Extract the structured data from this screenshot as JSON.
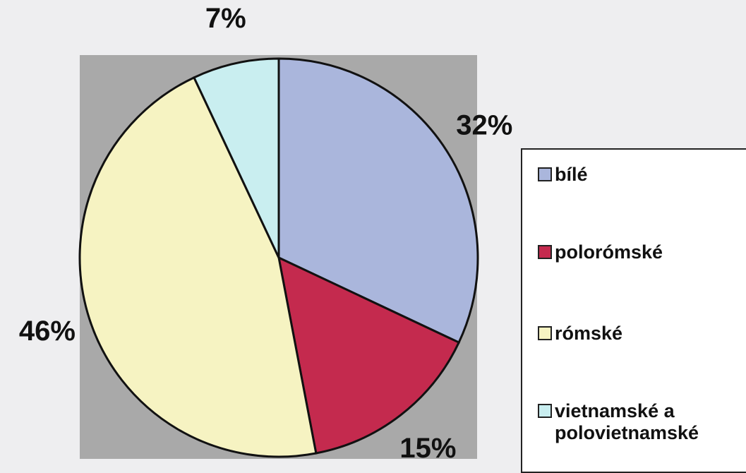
{
  "chart_data": {
    "type": "pie",
    "categories": [
      "bílé",
      "polorómské",
      "rómské",
      "vietnamské a polovietnamské"
    ],
    "values": [
      32,
      15,
      46,
      7
    ],
    "value_labels": [
      "32%",
      "15%",
      "46%",
      "7%"
    ],
    "colors": [
      "#aab6dc",
      "#c42a4e",
      "#f6f3c2",
      "#c9eef0"
    ],
    "legend": "right"
  }
}
